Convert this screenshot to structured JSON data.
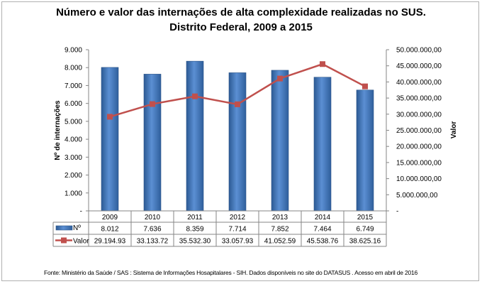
{
  "title_line1": "Número e valor das internações de alta complexidade realizadas no SUS.",
  "title_line2": "Distrito Federal, 2009 a 2015",
  "source": "Fonte:  Ministério da Saúde / SAS : Sistema de Informações Hosapitalares - SIH. Dados disponíveis no site do DATASUS . Acesso em abril de 2016",
  "chart_data": {
    "type": "bar+line",
    "categories": [
      "2009",
      "2010",
      "2011",
      "2012",
      "2013",
      "2014",
      "2015"
    ],
    "series": [
      {
        "name": "Nº",
        "type": "bar",
        "axis": "left",
        "values": [
          8012,
          7636,
          8359,
          7714,
          7852,
          7464,
          6749
        ],
        "labels": [
          "8.012",
          "7.636",
          "8.359",
          "7.714",
          "7.852",
          "7.464",
          "6.749"
        ],
        "color": "#4f81bd"
      },
      {
        "name": "Valor",
        "type": "line",
        "axis": "right",
        "values": [
          29194930,
          33133720,
          35532300,
          33057930,
          41052590,
          45538760,
          38625160
        ],
        "labels": [
          "29.194.93",
          "33.133.72",
          "35.532.30",
          "33.057.93",
          "41.052.59",
          "45.538.76",
          "38.625.16"
        ],
        "color": "#c0504d"
      }
    ],
    "ylabel_left": "Nº de internações",
    "ylabel_right": "Valor",
    "ylim_left": [
      0,
      9000
    ],
    "ylim_right": [
      0,
      50000000
    ],
    "yticks_left": [
      "-",
      "1.000",
      "2.000",
      "3.000",
      "4.000",
      "5.000",
      "6.000",
      "7.000",
      "8.000",
      "9.000"
    ],
    "yticks_right": [
      "-",
      "5.000.000,00",
      "10.000.000,00",
      "15.000.000,00",
      "20.000.000,00",
      "25.000.000,00",
      "30.000.000,00",
      "35.000.000,00",
      "40.000.000,00",
      "45.000.000,00",
      "50.000.000,00"
    ],
    "grid": false,
    "legend": "data-table"
  }
}
